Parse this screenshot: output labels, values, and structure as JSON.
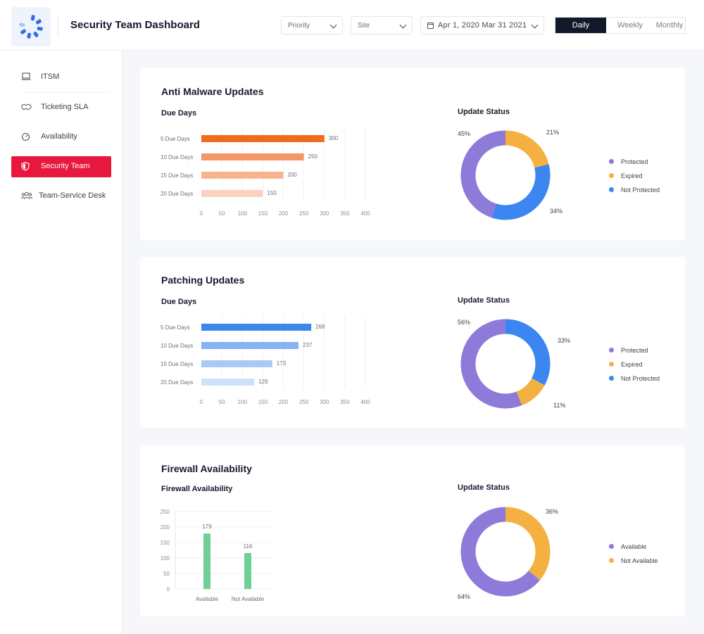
{
  "header": {
    "title": "Security Team Dashboard",
    "priority_label": "Priority",
    "site_label": "Site",
    "date_range": "Apr 1, 2020 Mar 31 2021",
    "periods": [
      "Daily",
      "Weekly",
      "Monthly"
    ],
    "active_period": "Daily"
  },
  "sidebar": {
    "items": [
      {
        "label": "ITSM",
        "icon": "laptop-icon"
      },
      {
        "label": "Ticketing SLA",
        "icon": "handshake-icon"
      },
      {
        "label": "Availability",
        "icon": "gauge-icon"
      },
      {
        "label": "Security Team",
        "icon": "shield-icon",
        "active": true
      },
      {
        "label": "Team-Service Desk",
        "icon": "users-icon"
      }
    ]
  },
  "colors": {
    "accent_red": "#e8173d",
    "protected": "#8e7ad9",
    "expired": "#f4b041",
    "not_protected": "#3b86f0",
    "available": "#8e7ad9",
    "not_available": "#f4b041"
  },
  "sections": [
    {
      "title": "Anti Malware Updates",
      "bar_title": "Due Days",
      "donut_title": "Update Status",
      "legend": [
        "Protected",
        "Expired",
        "Not Protected"
      ]
    },
    {
      "title": "Patching Updates",
      "bar_title": "Due Days",
      "donut_title": "Update Status",
      "legend": [
        "Protected",
        "Expired",
        "Not Protected"
      ]
    },
    {
      "title": "Firewall Availability",
      "bar_title": "Firewall Availability",
      "donut_title": "Update Status",
      "legend": [
        "Available",
        "Not Available"
      ]
    }
  ],
  "chart_data": [
    {
      "type": "bar",
      "orientation": "horizontal",
      "title": "Due Days",
      "categories": [
        "5 Due Days",
        "10 Due Days",
        "15 Due Days",
        "20 Due Days"
      ],
      "values": [
        300,
        250,
        200,
        150
      ],
      "xlim": [
        0,
        400
      ],
      "xticks": [
        0,
        50,
        100,
        150,
        200,
        250,
        300,
        350,
        400
      ],
      "colors": [
        "#f26a1b",
        "#f59667",
        "#f8b48f",
        "#fad2bd"
      ]
    },
    {
      "type": "pie",
      "title": "Update Status",
      "labels": [
        "Protected",
        "Expired",
        "Not Protected"
      ],
      "values": [
        45,
        21,
        34
      ],
      "value_labels": [
        "45%",
        "21%",
        "34%"
      ]
    },
    {
      "type": "bar",
      "orientation": "horizontal",
      "title": "Due Days",
      "categories": [
        "5 Due Days",
        "10 Due Days",
        "15 Due Days",
        "20 Due Days"
      ],
      "values": [
        268,
        237,
        173,
        129
      ],
      "xlim": [
        0,
        400
      ],
      "xticks": [
        0,
        50,
        100,
        150,
        200,
        250,
        300,
        350,
        400
      ],
      "colors": [
        "#3d86ec",
        "#85b3f4",
        "#a9c9f7",
        "#cfe0fa"
      ]
    },
    {
      "type": "pie",
      "title": "Update Status",
      "labels": [
        "Protected",
        "Expired",
        "Not Protected"
      ],
      "values": [
        56,
        11,
        33
      ],
      "value_labels": [
        "56%",
        "11%",
        "33%"
      ]
    },
    {
      "type": "bar",
      "orientation": "vertical",
      "title": "Firewall Availability",
      "categories": [
        "Available",
        "Not Available"
      ],
      "values": [
        179,
        116
      ],
      "ylim": [
        0,
        250
      ],
      "yticks": [
        0,
        50,
        100,
        150,
        200,
        250
      ],
      "colors": [
        "#6fcf97",
        "#6fcf97"
      ]
    },
    {
      "type": "pie",
      "title": "Update Status",
      "labels": [
        "Available",
        "Not Available"
      ],
      "values": [
        64,
        36
      ],
      "value_labels": [
        "64%",
        "36%"
      ]
    }
  ]
}
